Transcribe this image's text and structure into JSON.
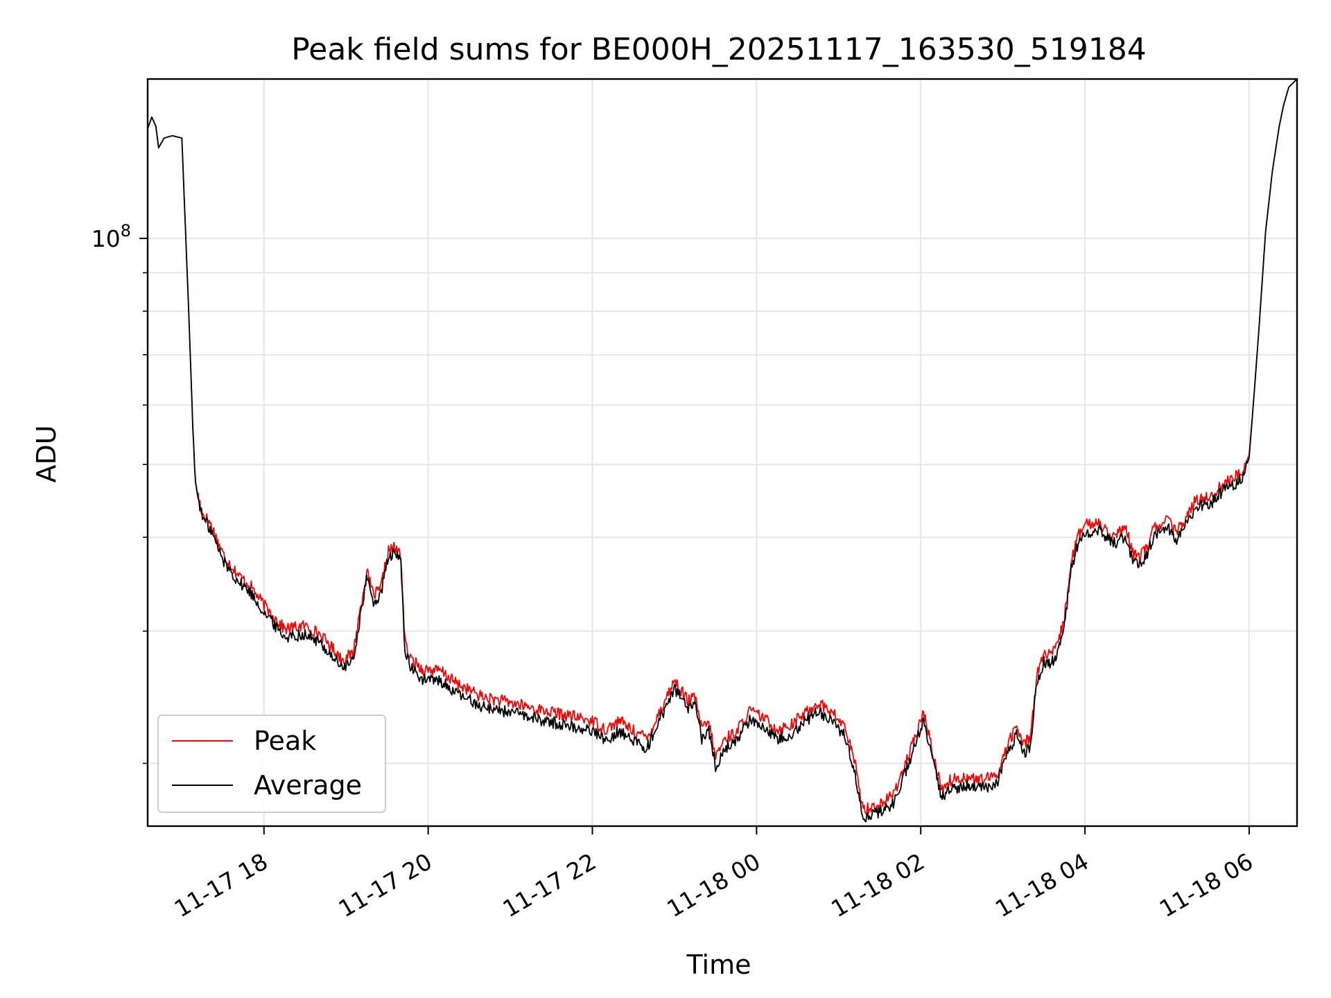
{
  "chart_data": {
    "type": "line",
    "title": "Peak field sums for BE000H_20251117_163530_519184",
    "xlabel": "Time",
    "ylabel": "ADU",
    "y_scale": "log",
    "xlim": [
      "2025-11-17T16:35",
      "2025-11-18T06:35"
    ],
    "ylim": [
      16500000,
      163000000
    ],
    "grid": true,
    "legend_position": "lower-left",
    "x_ticks": [
      {
        "t": "2025-11-17T18:00",
        "label": "11-17 18"
      },
      {
        "t": "2025-11-17T20:00",
        "label": "11-17 20"
      },
      {
        "t": "2025-11-17T22:00",
        "label": "11-17 22"
      },
      {
        "t": "2025-11-18T00:00",
        "label": "11-18 00"
      },
      {
        "t": "2025-11-18T02:00",
        "label": "11-18 02"
      },
      {
        "t": "2025-11-18T04:00",
        "label": "11-18 04"
      },
      {
        "t": "2025-11-18T06:00",
        "label": "11-18 06"
      }
    ],
    "y_major_ticks": [
      {
        "value": 100000000,
        "base": "10",
        "exp": "8"
      }
    ],
    "y_minor_ticks": [
      20000000,
      30000000,
      40000000,
      50000000,
      60000000,
      70000000,
      80000000,
      90000000
    ],
    "x": [
      "2025-11-17T16:35",
      "2025-11-17T16:38",
      "2025-11-17T16:41",
      "2025-11-17T16:43",
      "2025-11-17T16:47",
      "2025-11-17T16:53",
      "2025-11-17T17:00",
      "2025-11-17T17:05",
      "2025-11-17T17:08",
      "2025-11-17T17:10",
      "2025-11-17T17:15",
      "2025-11-17T17:20",
      "2025-11-17T17:25",
      "2025-11-17T17:30",
      "2025-11-17T17:36",
      "2025-11-17T17:42",
      "2025-11-17T17:50",
      "2025-11-17T18:00",
      "2025-11-17T18:15",
      "2025-11-17T18:30",
      "2025-11-17T18:40",
      "2025-11-17T18:50",
      "2025-11-17T18:57",
      "2025-11-17T19:05",
      "2025-11-17T19:15",
      "2025-11-17T19:20",
      "2025-11-17T19:25",
      "2025-11-17T19:31",
      "2025-11-17T19:35",
      "2025-11-17T19:40",
      "2025-11-17T19:43",
      "2025-11-17T19:47",
      "2025-11-17T19:53",
      "2025-11-17T19:56",
      "2025-11-17T20:00",
      "2025-11-17T20:10",
      "2025-11-17T20:20",
      "2025-11-17T20:40",
      "2025-11-17T21:00",
      "2025-11-17T21:20",
      "2025-11-17T21:40",
      "2025-11-17T22:00",
      "2025-11-17T22:10",
      "2025-11-17T22:20",
      "2025-11-17T22:30",
      "2025-11-17T22:40",
      "2025-11-17T22:50",
      "2025-11-17T23:00",
      "2025-11-17T23:10",
      "2025-11-17T23:15",
      "2025-11-17T23:20",
      "2025-11-17T23:25",
      "2025-11-17T23:30",
      "2025-11-17T23:37",
      "2025-11-17T23:45",
      "2025-11-17T23:55",
      "2025-11-18T00:05",
      "2025-11-18T00:15",
      "2025-11-18T00:25",
      "2025-11-18T00:35",
      "2025-11-18T00:45",
      "2025-11-18T00:55",
      "2025-11-18T01:05",
      "2025-11-18T01:12",
      "2025-11-18T01:18",
      "2025-11-18T01:25",
      "2025-11-18T01:32",
      "2025-11-18T01:40",
      "2025-11-18T01:48",
      "2025-11-18T01:55",
      "2025-11-18T02:02",
      "2025-11-18T02:08",
      "2025-11-18T02:15",
      "2025-11-18T02:22",
      "2025-11-18T02:32",
      "2025-11-18T02:43",
      "2025-11-18T02:55",
      "2025-11-18T03:05",
      "2025-11-18T03:10",
      "2025-11-18T03:15",
      "2025-11-18T03:20",
      "2025-11-18T03:25",
      "2025-11-18T03:30",
      "2025-11-18T03:35",
      "2025-11-18T03:40",
      "2025-11-18T03:45",
      "2025-11-18T03:50",
      "2025-11-18T03:55",
      "2025-11-18T04:00",
      "2025-11-18T04:10",
      "2025-11-18T04:20",
      "2025-11-18T04:30",
      "2025-11-18T04:35",
      "2025-11-18T04:40",
      "2025-11-18T04:45",
      "2025-11-18T04:50",
      "2025-11-18T05:00",
      "2025-11-18T05:07",
      "2025-11-18T05:15",
      "2025-11-18T05:20",
      "2025-11-18T05:25",
      "2025-11-18T05:30",
      "2025-11-18T05:35",
      "2025-11-18T05:40",
      "2025-11-18T05:45",
      "2025-11-18T05:55",
      "2025-11-18T06:00",
      "2025-11-18T06:03",
      "2025-11-18T06:07",
      "2025-11-18T06:12",
      "2025-11-18T06:17",
      "2025-11-18T06:22",
      "2025-11-18T06:25",
      "2025-11-18T06:29",
      "2025-11-18T06:35"
    ],
    "series": [
      {
        "name": "Peak",
        "color": "#ff0000",
        "values": [
          140,
          145,
          141,
          132,
          136,
          137,
          136,
          80,
          56,
          47,
          43,
          42,
          40,
          38,
          36.7,
          35.5,
          34.5,
          32.5,
          30.2,
          30.5,
          29.8,
          28.5,
          27.5,
          28,
          36,
          33.5,
          34,
          38.4,
          38.7,
          38,
          29,
          27.5,
          27,
          26.6,
          26.7,
          26.5,
          25.6,
          24.5,
          24.1,
          23.6,
          23.2,
          22.8,
          22.2,
          22.8,
          22.1,
          21.6,
          23.6,
          25.8,
          24.2,
          24.5,
          22.2,
          22.7,
          20.4,
          21.6,
          22,
          23.5,
          23,
          22.2,
          22.5,
          23.3,
          24.1,
          23.4,
          22.3,
          19.9,
          17.4,
          17.5,
          17.7,
          18.2,
          19.8,
          21.4,
          23.4,
          21,
          18.5,
          19,
          19.2,
          19,
          19.2,
          21.5,
          22.4,
          21.2,
          21.7,
          26.3,
          28,
          27.8,
          28.7,
          31.3,
          37.2,
          40.2,
          41.5,
          41.9,
          40.1,
          41,
          38,
          37.8,
          38.7,
          41,
          42.3,
          40.6,
          42.8,
          44.5,
          45.1,
          45.3,
          45.8,
          47,
          47.5,
          48.9,
          51.5,
          60,
          75,
          102,
          123,
          141,
          150,
          159,
          163
        ]
      },
      {
        "name": "Average",
        "color": "#000000",
        "values": [
          140,
          145,
          141,
          132,
          136,
          137,
          136,
          80,
          56,
          47,
          42.5,
          41.3,
          39.3,
          37.3,
          36,
          34.8,
          33.8,
          31.8,
          29.5,
          29.7,
          29,
          27.8,
          26.8,
          27.3,
          35.3,
          32.8,
          33.3,
          37.7,
          38,
          37.3,
          28.4,
          26.8,
          26.2,
          25.8,
          25.9,
          25.7,
          24.8,
          23.8,
          23.4,
          22.9,
          22.5,
          22.1,
          21.5,
          22.1,
          21.4,
          21,
          23,
          25.2,
          23.6,
          23.8,
          21.6,
          22.1,
          19.8,
          21,
          21.4,
          22.9,
          22.4,
          21.6,
          21.9,
          22.7,
          23.5,
          22.8,
          21.7,
          19.3,
          17,
          17.1,
          17.3,
          17.7,
          19.3,
          20.9,
          22.8,
          20.4,
          18,
          18.5,
          18.7,
          18.5,
          18.7,
          20.9,
          21.8,
          20.6,
          21.1,
          25.6,
          27.3,
          27.1,
          28,
          30.6,
          36.3,
          39.3,
          40.6,
          41,
          39.2,
          40.1,
          37.1,
          36.9,
          37.8,
          40,
          41.3,
          39.6,
          41.8,
          43.5,
          44.1,
          44.3,
          44.8,
          46,
          46.5,
          48,
          51,
          60,
          75,
          102,
          123,
          141,
          150,
          159,
          163
        ]
      }
    ],
    "value_unit_multiplier": 1000000
  }
}
